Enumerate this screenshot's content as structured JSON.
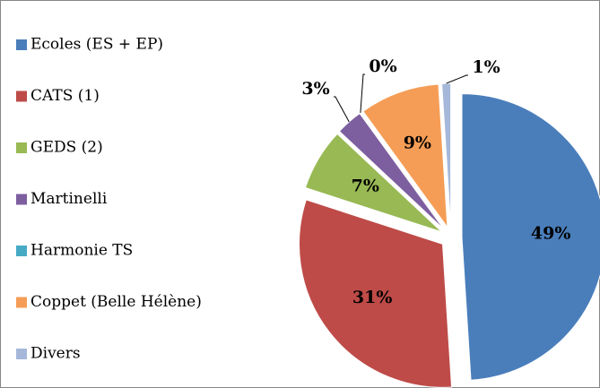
{
  "chart_data": {
    "type": "pie",
    "categories": [
      "Ecoles (ES + EP)",
      "CATS (1)",
      "GEDS (2)",
      "Martinelli",
      "Harmonie TS",
      "Coppet (Belle Hélène)",
      "Divers"
    ],
    "values": [
      49,
      31,
      7,
      3,
      0,
      9,
      1
    ],
    "value_labels": [
      "49%",
      "31%",
      "7%",
      "3%",
      "0%",
      "9%",
      "1%"
    ],
    "colors": [
      "#4a7ebb",
      "#be4b48",
      "#98b954",
      "#7d5fa0",
      "#46aac5",
      "#f59d56",
      "#a5b8da"
    ],
    "legend": "left"
  }
}
